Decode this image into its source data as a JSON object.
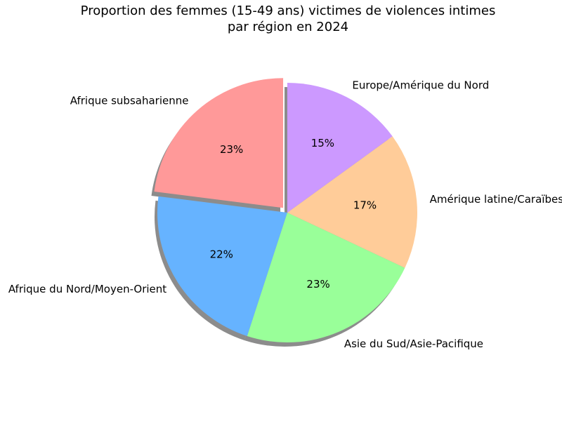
{
  "chart_data": {
    "type": "pie",
    "title_line1": "Proportion des femmes (15-49 ans) victimes de violences intimes",
    "title_line2": "par région en 2024",
    "categories": [
      "Afrique subsaharienne",
      "Afrique du Nord/Moyen-Orient",
      "Asie du Sud/Asie-Pacifique",
      "Amérique latine/Caraïbes",
      "Europe/Amérique du Nord"
    ],
    "values": [
      23,
      22,
      23,
      17,
      15
    ],
    "percent_labels": [
      "23%",
      "22%",
      "23%",
      "17%",
      "15%"
    ],
    "colors": [
      "#ff9999",
      "#66b3ff",
      "#99ff99",
      "#ffcc99",
      "#cc99ff"
    ],
    "exploded": [
      true,
      false,
      false,
      false,
      false
    ],
    "start_angle_deg": 90,
    "direction": "counterclockwise",
    "shadow": true
  }
}
